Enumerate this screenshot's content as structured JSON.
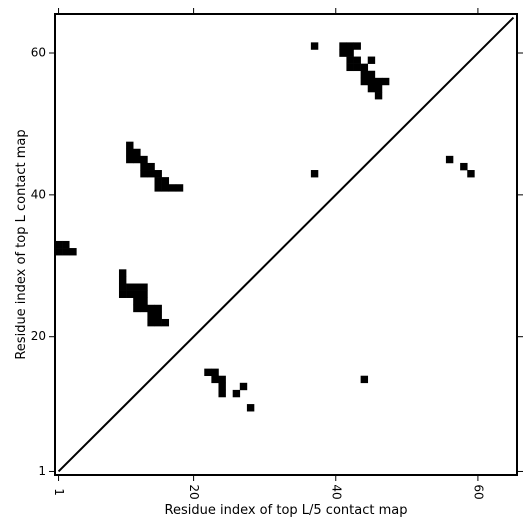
{
  "chart_data": {
    "type": "heatmap",
    "title": "",
    "xlabel": "Residue index of top L/5 contact map",
    "ylabel": "Residue index of top L contact map",
    "xlim": [
      0.5,
      65.5
    ],
    "ylim": [
      0.5,
      65.5
    ],
    "x_ticks": [
      1,
      20,
      40,
      60
    ],
    "y_ticks": [
      1,
      20,
      40,
      60
    ],
    "grid": false,
    "legend": "none",
    "diagonal": {
      "from": [
        1,
        1
      ],
      "to": [
        65,
        65
      ]
    },
    "cell_color": "#000000",
    "cells": [
      [
        37,
        61
      ],
      [
        41,
        61
      ],
      [
        42,
        61
      ],
      [
        43,
        61
      ],
      [
        41,
        60
      ],
      [
        42,
        60
      ],
      [
        42,
        59
      ],
      [
        43,
        59
      ],
      [
        45,
        59
      ],
      [
        42,
        58
      ],
      [
        43,
        58
      ],
      [
        44,
        58
      ],
      [
        44,
        57
      ],
      [
        45,
        57
      ],
      [
        44,
        56
      ],
      [
        45,
        56
      ],
      [
        46,
        56
      ],
      [
        47,
        56
      ],
      [
        45,
        55
      ],
      [
        46,
        55
      ],
      [
        46,
        54
      ],
      [
        56,
        45
      ],
      [
        58,
        44
      ],
      [
        37,
        43
      ],
      [
        59,
        43
      ],
      [
        11,
        47
      ],
      [
        11,
        46
      ],
      [
        12,
        46
      ],
      [
        11,
        45
      ],
      [
        12,
        45
      ],
      [
        13,
        45
      ],
      [
        13,
        44
      ],
      [
        14,
        44
      ],
      [
        13,
        43
      ],
      [
        14,
        43
      ],
      [
        15,
        43
      ],
      [
        15,
        42
      ],
      [
        16,
        42
      ],
      [
        15,
        41
      ],
      [
        16,
        41
      ],
      [
        17,
        41
      ],
      [
        18,
        41
      ],
      [
        1,
        33
      ],
      [
        2,
        33
      ],
      [
        1,
        32
      ],
      [
        2,
        32
      ],
      [
        3,
        32
      ],
      [
        10,
        29
      ],
      [
        10,
        28
      ],
      [
        10,
        27
      ],
      [
        11,
        27
      ],
      [
        12,
        27
      ],
      [
        13,
        27
      ],
      [
        10,
        26
      ],
      [
        11,
        26
      ],
      [
        12,
        26
      ],
      [
        13,
        26
      ],
      [
        12,
        25
      ],
      [
        13,
        25
      ],
      [
        12,
        24
      ],
      [
        13,
        24
      ],
      [
        14,
        24
      ],
      [
        15,
        24
      ],
      [
        14,
        23
      ],
      [
        15,
        23
      ],
      [
        14,
        22
      ],
      [
        15,
        22
      ],
      [
        16,
        22
      ],
      [
        22,
        15
      ],
      [
        23,
        15
      ],
      [
        23,
        14
      ],
      [
        24,
        14
      ],
      [
        24,
        13
      ],
      [
        27,
        13
      ],
      [
        24,
        12
      ],
      [
        26,
        12
      ],
      [
        44,
        14
      ],
      [
        28,
        10
      ]
    ]
  }
}
